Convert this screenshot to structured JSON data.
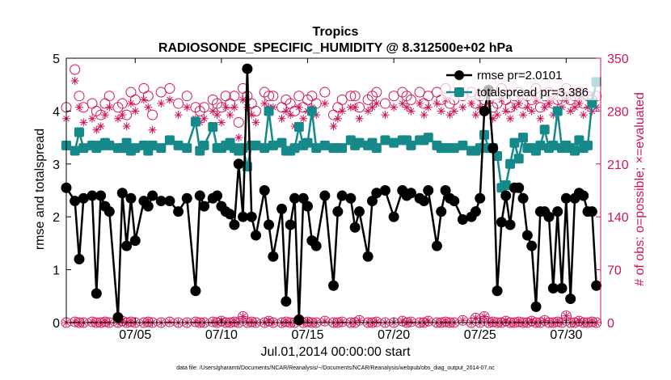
{
  "chart_data": {
    "type": "line",
    "title": "Tropics",
    "subtitle": "RADIOSONDE_SPECIFIC_HUMIDITY @ 8.312500e+02 hPa",
    "xlabel": "Jul.01,2014 00:00:00 start",
    "ylabel_left": "rmse and totalspread",
    "ylabel_right": "# of obs: o=possible; ×=evaluated",
    "footnote": "data file: /Users/gharamti/Documents/NCAR/Reanalysis/~/Documents/NCAR/Reanalysis/webpub/obs_diag_output_2014-07.nc",
    "xlim": [
      1.0,
      32.0
    ],
    "ylim_left": [
      0,
      5
    ],
    "ylim_right": [
      0,
      350
    ],
    "x_ticks": [
      5,
      10,
      15,
      20,
      25,
      30
    ],
    "x_tick_labels": [
      "07/05",
      "07/10",
      "07/15",
      "07/20",
      "07/25",
      "07/30"
    ],
    "y_left_ticks": [
      "0",
      "1",
      "2",
      "3",
      "4",
      "5"
    ],
    "y_right_ticks": [
      "0",
      "70",
      "140",
      "210",
      "280",
      "350"
    ],
    "colors": {
      "rmse": "#000000",
      "spread": "#16898a",
      "obs": "#d1145a"
    },
    "legend": [
      {
        "label": "rmse pr=2.0101",
        "marker": "circle",
        "color": "#000000"
      },
      {
        "label": "totalspread pr=3.386",
        "marker": "square",
        "color": "#16898a"
      }
    ],
    "series": [
      {
        "name": "rmse",
        "x": [
          1.0,
          1.5,
          1.75,
          2.0,
          2.5,
          2.75,
          3.0,
          3.25,
          3.5,
          4.0,
          4.25,
          4.5,
          4.75,
          5.0,
          5.5,
          5.75,
          6.0,
          6.5,
          7.0,
          7.5,
          8.0,
          8.5,
          8.75,
          9.0,
          9.5,
          9.75,
          10.0,
          10.25,
          10.5,
          10.75,
          11.0,
          11.25,
          11.5,
          11.75,
          12.0,
          12.5,
          12.75,
          13.0,
          13.5,
          13.75,
          14.0,
          14.25,
          14.5,
          14.75,
          15.0,
          15.25,
          15.5,
          16.0,
          16.5,
          16.75,
          17.0,
          17.5,
          17.75,
          18.0,
          18.5,
          18.75,
          19.0,
          19.5,
          20.0,
          20.5,
          20.75,
          21.0,
          21.5,
          21.75,
          22.0,
          22.5,
          22.75,
          23.0,
          23.25,
          23.5,
          24.0,
          24.5,
          24.75,
          25.0,
          25.25,
          25.5,
          25.75,
          26.0,
          26.25,
          26.5,
          26.75,
          27.0,
          27.25,
          27.5,
          27.75,
          28.0,
          28.25,
          28.5,
          28.75,
          29.0,
          29.25,
          29.5,
          29.75,
          30.0,
          30.25,
          30.5,
          30.75,
          31.0,
          31.25,
          31.5,
          31.75
        ],
        "y": [
          2.55,
          2.3,
          1.2,
          2.35,
          2.4,
          0.55,
          2.4,
          2.2,
          2.1,
          0.1,
          2.45,
          1.45,
          2.35,
          1.55,
          2.3,
          2.2,
          2.4,
          2.3,
          2.3,
          2.1,
          2.35,
          0.6,
          2.4,
          2.2,
          2.35,
          2.4,
          2.2,
          2.1,
          2.05,
          1.85,
          3.0,
          2.0,
          4.8,
          2.0,
          1.65,
          2.5,
          1.85,
          1.25,
          2.15,
          0.4,
          1.85,
          2.35,
          0.05,
          2.35,
          2.2,
          1.55,
          1.45,
          2.4,
          0.7,
          2.1,
          2.4,
          2.35,
          1.8,
          2.1,
          1.25,
          2.3,
          2.45,
          2.5,
          2.0,
          2.5,
          2.4,
          2.45,
          2.35,
          2.3,
          2.5,
          1.45,
          2.1,
          2.5,
          2.35,
          2.3,
          1.95,
          2.0,
          2.1,
          2.35,
          4.0,
          4.4,
          3.3,
          0.6,
          1.9,
          2.4,
          1.85,
          2.55,
          2.55,
          2.35,
          1.65,
          1.45,
          0.3,
          2.1,
          2.1,
          2.0,
          0.65,
          2.1,
          0.65,
          2.35,
          0.45,
          2.35,
          2.45,
          2.4,
          2.1,
          2.1,
          0.7
        ]
      },
      {
        "name": "totalspread",
        "x": [
          1.0,
          1.5,
          1.75,
          2.0,
          2.5,
          2.75,
          3.0,
          3.25,
          3.5,
          4.0,
          4.25,
          4.5,
          4.75,
          5.0,
          5.5,
          5.75,
          6.0,
          6.5,
          7.0,
          7.5,
          8.0,
          8.5,
          8.75,
          9.0,
          9.5,
          9.75,
          10.0,
          10.25,
          10.5,
          10.75,
          11.0,
          11.25,
          11.5,
          11.75,
          12.0,
          12.5,
          12.75,
          13.0,
          13.5,
          13.75,
          14.0,
          14.25,
          14.5,
          14.75,
          15.0,
          15.25,
          15.5,
          16.0,
          16.5,
          16.75,
          17.0,
          17.5,
          17.75,
          18.0,
          18.5,
          18.75,
          19.0,
          19.5,
          20.0,
          20.5,
          20.75,
          21.0,
          21.5,
          21.75,
          22.0,
          22.5,
          22.75,
          23.0,
          23.25,
          23.5,
          24.0,
          24.5,
          24.75,
          25.0,
          25.25,
          25.5,
          25.75,
          26.0,
          26.25,
          26.5,
          26.75,
          27.0,
          27.25,
          27.5,
          27.75,
          28.0,
          28.25,
          28.5,
          28.75,
          29.0,
          29.25,
          29.5,
          29.75,
          30.0,
          30.25,
          30.5,
          30.75,
          31.0,
          31.25,
          31.5,
          31.75
        ],
        "y": [
          3.35,
          3.25,
          3.6,
          3.3,
          3.35,
          3.3,
          3.35,
          3.4,
          3.35,
          3.3,
          3.3,
          3.4,
          3.25,
          3.3,
          3.35,
          3.25,
          3.35,
          3.3,
          3.45,
          3.35,
          3.3,
          3.8,
          3.25,
          3.35,
          3.7,
          3.3,
          3.3,
          3.35,
          3.4,
          3.3,
          3.25,
          3.3,
          2.95,
          3.35,
          3.35,
          3.3,
          4.0,
          3.35,
          3.4,
          3.25,
          3.25,
          3.3,
          3.7,
          3.35,
          3.4,
          4.0,
          3.3,
          3.35,
          3.3,
          3.3,
          3.3,
          3.45,
          3.35,
          3.4,
          3.35,
          3.4,
          3.3,
          3.45,
          3.4,
          3.45,
          3.45,
          3.35,
          3.45,
          3.45,
          3.5,
          3.35,
          3.3,
          3.3,
          3.3,
          3.3,
          3.35,
          3.25,
          3.25,
          3.3,
          3.55,
          3.3,
          3.3,
          3.15,
          2.55,
          2.6,
          3.0,
          3.4,
          3.1,
          3.5,
          3.3,
          3.3,
          3.25,
          3.35,
          3.65,
          3.3,
          3.35,
          4.0,
          3.3,
          3.35,
          3.3,
          3.25,
          3.45,
          3.3,
          3.35,
          4.15,
          4.55
        ]
      },
      {
        "name": "obs_possible",
        "axis": "right",
        "x": [
          1.0,
          1.5,
          1.75,
          2.0,
          2.5,
          2.75,
          3.0,
          3.25,
          3.5,
          4.0,
          4.25,
          4.5,
          4.75,
          5.0,
          5.5,
          5.75,
          6.0,
          6.5,
          7.0,
          7.5,
          8.0,
          8.5,
          8.75,
          9.0,
          9.5,
          9.75,
          10.0,
          10.25,
          10.5,
          10.75,
          11.0,
          11.25,
          11.5,
          11.75,
          12.0,
          12.5,
          12.75,
          13.0,
          13.5,
          13.75,
          14.0,
          14.25,
          14.5,
          14.75,
          15.0,
          15.25,
          15.5,
          16.0,
          16.5,
          16.75,
          17.0,
          17.5,
          17.75,
          18.0,
          18.5,
          18.75,
          19.0,
          19.5,
          20.0,
          20.5,
          20.75,
          21.0,
          21.5,
          21.75,
          22.0,
          22.5,
          22.75,
          23.0,
          23.25,
          23.5,
          24.0,
          24.5,
          24.75,
          25.0,
          25.25,
          25.5,
          25.75,
          26.0,
          26.25,
          26.5,
          26.75,
          27.0,
          27.25,
          27.5,
          27.75,
          28.0,
          28.25,
          28.5,
          28.75,
          29.0,
          29.25,
          29.5,
          29.75,
          30.0,
          30.25,
          30.5,
          30.75,
          31.0,
          31.25,
          31.5,
          31.75
        ],
        "y": [
          285,
          335,
          300,
          285,
          290,
          280,
          275,
          290,
          300,
          285,
          290,
          275,
          305,
          295,
          310,
          300,
          275,
          305,
          310,
          290,
          300,
          285,
          280,
          285,
          295,
          290,
          285,
          300,
          290,
          300,
          265,
          310,
          300,
          290,
          280,
          305,
          300,
          300,
          285,
          295,
          290,
          280,
          300,
          285,
          295,
          300,
          290,
          305,
          275,
          285,
          295,
          300,
          300,
          285,
          295,
          300,
          305,
          290,
          300,
          305,
          300,
          295,
          305,
          290,
          300,
          305,
          295,
          310,
          290,
          295,
          300,
          305,
          290,
          300,
          295,
          305,
          285,
          290,
          310,
          295,
          285,
          300,
          305,
          290,
          300,
          295,
          310,
          285,
          300,
          305,
          290,
          295,
          300,
          310,
          295,
          300,
          305,
          290,
          300,
          295,
          300
        ]
      },
      {
        "name": "obs_evaluated",
        "axis": "right",
        "x": [
          1.0,
          1.5,
          1.75,
          2.0,
          2.5,
          2.75,
          3.0,
          3.25,
          3.5,
          4.0,
          4.25,
          4.5,
          4.75,
          5.0,
          5.5,
          5.75,
          6.0,
          6.5,
          7.0,
          7.5,
          8.0,
          8.5,
          8.75,
          9.0,
          9.5,
          9.75,
          10.0,
          10.25,
          10.5,
          10.75,
          11.0,
          11.25,
          11.5,
          11.75,
          12.0,
          12.5,
          12.75,
          13.0,
          13.5,
          13.75,
          14.0,
          14.25,
          14.5,
          14.75,
          15.0,
          15.25,
          15.5,
          16.0,
          16.5,
          16.75,
          17.0,
          17.5,
          17.75,
          18.0,
          18.5,
          18.75,
          19.0,
          19.5,
          20.0,
          20.5,
          20.75,
          21.0,
          21.5,
          21.75,
          22.0,
          22.5,
          22.75,
          23.0,
          23.25,
          23.5,
          24.0,
          24.5,
          24.75,
          25.0,
          25.25,
          25.5,
          25.75,
          26.0,
          26.25,
          26.5,
          26.75,
          27.0,
          27.25,
          27.5,
          27.75,
          28.0,
          28.25,
          28.5,
          28.75,
          29.0,
          29.25,
          29.5,
          29.75,
          30.0,
          30.25,
          30.5,
          30.75,
          31.0,
          31.25,
          31.5,
          31.75
        ],
        "y": [
          270,
          320,
          285,
          265,
          270,
          255,
          260,
          275,
          285,
          270,
          275,
          260,
          290,
          280,
          295,
          285,
          255,
          290,
          295,
          275,
          285,
          270,
          265,
          270,
          280,
          275,
          265,
          285,
          275,
          285,
          245,
          295,
          285,
          275,
          265,
          290,
          285,
          285,
          270,
          280,
          275,
          260,
          285,
          270,
          280,
          285,
          275,
          290,
          260,
          270,
          280,
          285,
          285,
          270,
          280,
          285,
          290,
          275,
          285,
          290,
          285,
          280,
          290,
          275,
          285,
          290,
          280,
          295,
          275,
          280,
          285,
          290,
          275,
          285,
          280,
          290,
          270,
          275,
          295,
          280,
          270,
          285,
          290,
          275,
          285,
          280,
          295,
          270,
          285,
          290,
          275,
          280,
          285,
          295,
          280,
          285,
          290,
          275,
          285,
          280,
          285
        ]
      },
      {
        "name": "obs_zero_possible",
        "axis": "right",
        "x": [
          1.0,
          1.5,
          1.75,
          2.0,
          2.5,
          2.75,
          3.0,
          3.25,
          3.5,
          4.0,
          4.25,
          4.5,
          4.75,
          5.0,
          5.5,
          5.75,
          6.0,
          6.5,
          7.0,
          7.5,
          8.0,
          8.5,
          8.75,
          9.0,
          9.5,
          9.75,
          10.0,
          10.25,
          10.5,
          10.75,
          11.0,
          11.25,
          11.5,
          11.75,
          12.0,
          12.5,
          12.75,
          13.0,
          13.5,
          13.75,
          14.0,
          14.25,
          14.5,
          14.75,
          15.0,
          15.25,
          15.5,
          16.0,
          16.5,
          16.75,
          17.0,
          17.5,
          17.75,
          18.0,
          18.5,
          18.75,
          19.0,
          19.5,
          20.0,
          20.5,
          20.75,
          21.0,
          21.5,
          21.75,
          22.0,
          22.5,
          22.75,
          23.0,
          23.25,
          23.5,
          24.0,
          24.5,
          24.75,
          25.0,
          25.25,
          25.5,
          25.75,
          26.0,
          26.25,
          26.5,
          26.75,
          27.0,
          27.25,
          27.5,
          27.75,
          28.0,
          28.25,
          28.5,
          28.75,
          29.0,
          29.25,
          29.5,
          29.75,
          30.0,
          30.25,
          30.5,
          30.75,
          31.0,
          31.25,
          31.5,
          31.75
        ],
        "y": [
          0,
          1,
          0,
          0,
          1,
          0,
          0,
          1,
          0,
          0,
          2,
          0,
          1,
          0,
          0,
          1,
          0,
          0,
          1,
          0,
          0,
          1,
          0,
          0,
          1,
          0,
          2,
          0,
          0,
          1,
          0,
          8,
          0,
          1,
          0,
          0,
          2,
          0,
          0,
          1,
          0,
          0,
          4,
          0,
          1,
          0,
          0,
          2,
          0,
          0,
          1,
          0,
          0,
          3,
          0,
          0,
          1,
          0,
          0,
          2,
          0,
          1,
          0,
          0,
          2,
          0,
          0,
          1,
          0,
          0,
          3,
          0,
          6,
          0,
          8,
          0,
          1,
          0,
          0,
          2,
          0,
          0,
          1,
          0,
          0,
          2,
          0,
          0,
          3,
          0,
          0,
          1,
          0,
          9,
          0,
          0,
          2,
          0,
          0,
          1,
          0
        ]
      }
    ]
  }
}
